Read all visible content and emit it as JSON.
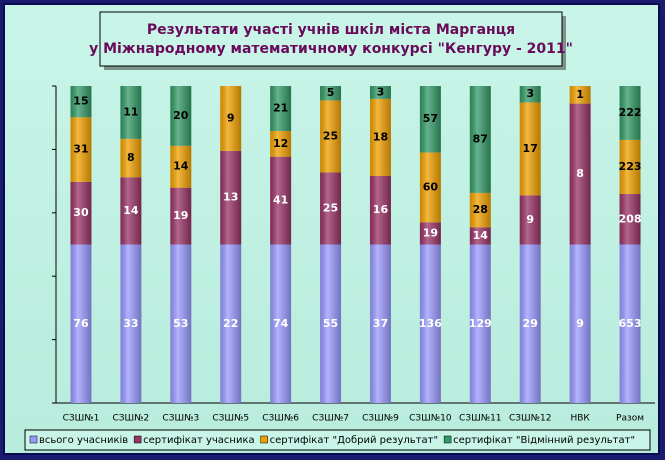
{
  "chart_data": {
    "type": "bar",
    "stacking": "percent",
    "title": [
      "Результати участі учнів шкіл міста Марганця",
      "у Міжнародному математичному конкурсі \"Кенгуру - 2011\""
    ],
    "categories": [
      "СЗШ№1",
      "СЗШ№2",
      "СЗШ№3",
      "СЗШ№5",
      "СЗШ№6",
      "СЗШ№7",
      "СЗШ№9",
      "СЗШ№10",
      "СЗШ№11",
      "СЗШ№12",
      "НВК",
      "Разом"
    ],
    "series": [
      {
        "name": "всього учасників",
        "color": "#9999ff",
        "values": [
          76,
          33,
          53,
          22,
          74,
          55,
          37,
          136,
          129,
          29,
          9,
          653
        ]
      },
      {
        "name": "сертифікат учасника",
        "color": "#993366",
        "values": [
          30,
          14,
          19,
          13,
          41,
          25,
          16,
          19,
          14,
          9,
          8,
          208
        ]
      },
      {
        "name": "сертифікат \"Добрий результат\"",
        "color": "#f0a000",
        "values": [
          31,
          8,
          14,
          9,
          12,
          25,
          18,
          60,
          28,
          17,
          1,
          223
        ]
      },
      {
        "name": "сертифікат \"Відмінний результат\"",
        "color": "#339966",
        "values": [
          15,
          11,
          20,
          null,
          21,
          5,
          3,
          57,
          87,
          3,
          null,
          222
        ]
      }
    ],
    "ylim": [
      0,
      100
    ],
    "yticks": [
      0,
      20,
      40,
      60,
      80,
      100
    ],
    "legend": "bottom"
  }
}
